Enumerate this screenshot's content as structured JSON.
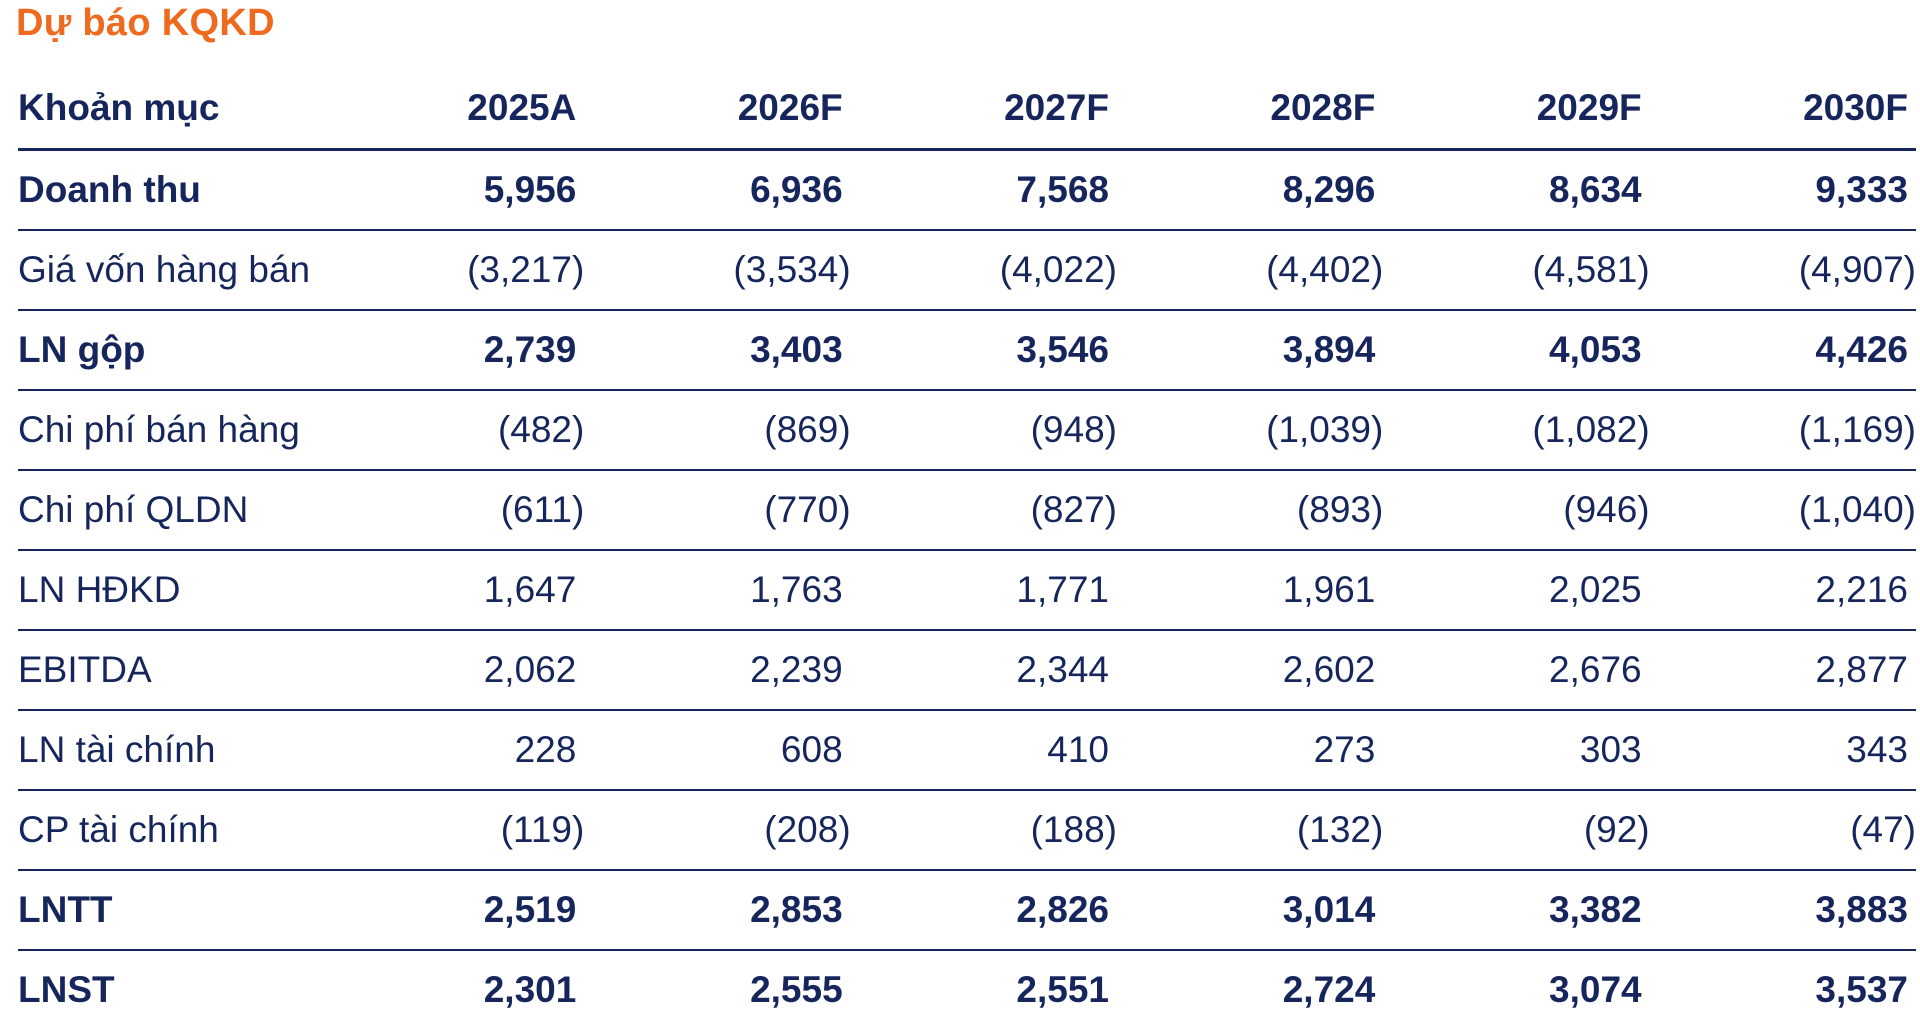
{
  "title": "Dự báo KQKD",
  "colors": {
    "title": "#ef6a1f",
    "text": "#16265c",
    "rule": "#16265c"
  },
  "table": {
    "headers": [
      "Khoản mục",
      "2025A",
      "2026F",
      "2027F",
      "2028F",
      "2029F",
      "2030F"
    ],
    "rows": [
      {
        "label": "Doanh thu",
        "bold": true,
        "values": [
          "5,956",
          "6,936",
          "7,568",
          "8,296",
          "8,634",
          "9,333"
        ]
      },
      {
        "label": "Giá vốn hàng bán",
        "bold": false,
        "values": [
          "(3,217)",
          "(3,534)",
          "(4,022)",
          "(4,402)",
          "(4,581)",
          "(4,907)"
        ]
      },
      {
        "label": "LN gộp",
        "bold": true,
        "values": [
          "2,739",
          "3,403",
          "3,546",
          "3,894",
          "4,053",
          "4,426"
        ]
      },
      {
        "label": "Chi phí bán hàng",
        "bold": false,
        "values": [
          "(482)",
          "(869)",
          "(948)",
          "(1,039)",
          "(1,082)",
          "(1,169)"
        ]
      },
      {
        "label": "Chi phí QLDN",
        "bold": false,
        "values": [
          "(611)",
          "(770)",
          "(827)",
          "(893)",
          "(946)",
          "(1,040)"
        ]
      },
      {
        "label": "LN HĐKD",
        "bold": false,
        "values": [
          "1,647",
          "1,763",
          "1,771",
          "1,961",
          "2,025",
          "2,216"
        ]
      },
      {
        "label": "EBITDA",
        "bold": false,
        "values": [
          "2,062",
          "2,239",
          "2,344",
          "2,602",
          "2,676",
          "2,877"
        ]
      },
      {
        "label": "LN tài chính",
        "bold": false,
        "values": [
          "228",
          "608",
          "410",
          "273",
          "303",
          "343"
        ]
      },
      {
        "label": "CP tài chính",
        "bold": false,
        "values": [
          "(119)",
          "(208)",
          "(188)",
          "(132)",
          "(92)",
          "(47)"
        ]
      },
      {
        "label": "LNTT",
        "bold": true,
        "values": [
          "2,519",
          "2,853",
          "2,826",
          "3,014",
          "3,382",
          "3,883"
        ]
      },
      {
        "label": "LNST",
        "bold": true,
        "values": [
          "2,301",
          "2,555",
          "2,551",
          "2,724",
          "3,074",
          "3,537"
        ]
      }
    ]
  }
}
